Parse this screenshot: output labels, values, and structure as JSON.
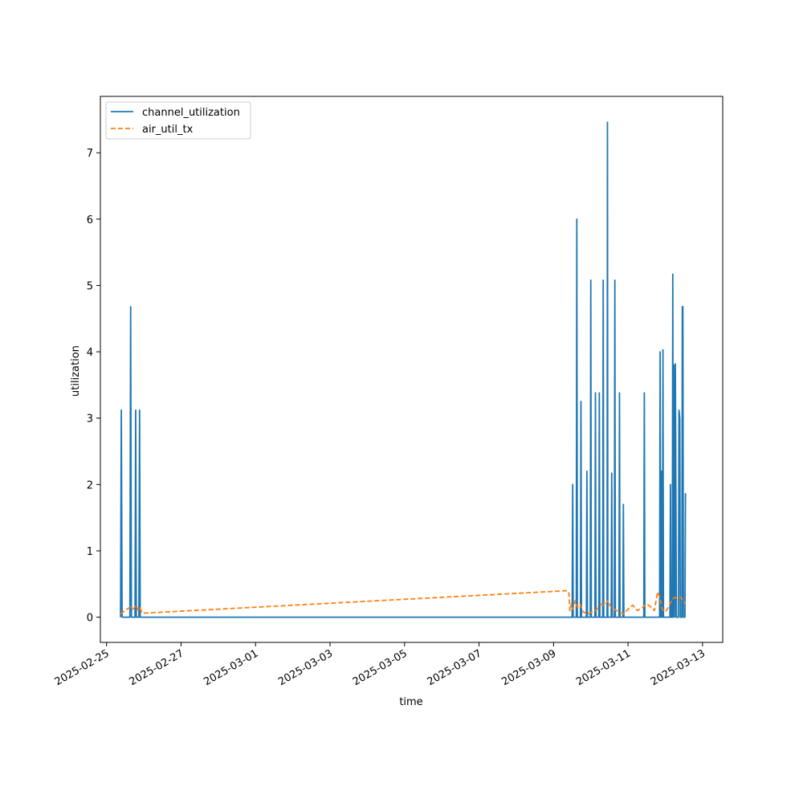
{
  "chart_data": {
    "type": "line",
    "xlabel": "time",
    "ylabel": "utilization",
    "x_axis": {
      "type": "date",
      "ticks": [
        "2025-02-25",
        "2025-02-27",
        "2025-03-01",
        "2025-03-03",
        "2025-03-05",
        "2025-03-07",
        "2025-03-09",
        "2025-03-11",
        "2025-03-13"
      ],
      "range": [
        "2025-02-24 20:00",
        "2025-03-13 13:00"
      ]
    },
    "y_axis": {
      "ticks": [
        "0",
        "1",
        "2",
        "3",
        "4",
        "5",
        "6",
        "7"
      ],
      "range": [
        -0.38,
        7.85
      ]
    },
    "legend": {
      "position": "top-left"
    },
    "grid": false,
    "series": [
      {
        "name": "channel_utilization",
        "color": "#1f77b4",
        "style": "solid",
        "points": [
          [
            "2025-02-25 09:00",
            0
          ],
          [
            "2025-02-25 09:30",
            3.12
          ],
          [
            "2025-02-25 10:00",
            0
          ],
          [
            "2025-02-25 15:00",
            0
          ],
          [
            "2025-02-25 15:30",
            4.68
          ],
          [
            "2025-02-25 16:00",
            0
          ],
          [
            "2025-02-25 18:20",
            0
          ],
          [
            "2025-02-25 18:45",
            3.12
          ],
          [
            "2025-02-25 19:10",
            0
          ],
          [
            "2025-02-25 20:50",
            0
          ],
          [
            "2025-02-25 21:15",
            3.12
          ],
          [
            "2025-02-25 21:40",
            0
          ],
          [
            "2025-03-09 10:00",
            0
          ],
          [
            "2025-03-09 12:00",
            0
          ],
          [
            "2025-03-09 12:20",
            2.0
          ],
          [
            "2025-03-09 12:40",
            0
          ],
          [
            "2025-03-09 14:40",
            0
          ],
          [
            "2025-03-09 15:00",
            6.0
          ],
          [
            "2025-03-09 15:20",
            0
          ],
          [
            "2025-03-09 17:20",
            0
          ],
          [
            "2025-03-09 17:40",
            3.25
          ],
          [
            "2025-03-09 18:00",
            0
          ],
          [
            "2025-03-09 21:10",
            0
          ],
          [
            "2025-03-09 21:30",
            2.2
          ],
          [
            "2025-03-09 21:50",
            0
          ],
          [
            "2025-03-09 23:40",
            0
          ],
          [
            "2025-03-10 00:00",
            5.08
          ],
          [
            "2025-03-10 00:20",
            0
          ],
          [
            "2025-03-10 02:40",
            0
          ],
          [
            "2025-03-10 03:00",
            3.38
          ],
          [
            "2025-03-10 03:20",
            0
          ],
          [
            "2025-03-10 05:10",
            0
          ],
          [
            "2025-03-10 05:30",
            3.38
          ],
          [
            "2025-03-10 05:50",
            0
          ],
          [
            "2025-03-10 07:40",
            0
          ],
          [
            "2025-03-10 08:00",
            5.08
          ],
          [
            "2025-03-10 08:20",
            0
          ],
          [
            "2025-03-10 10:30",
            0
          ],
          [
            "2025-03-10 10:45",
            7.46
          ],
          [
            "2025-03-10 11:00",
            0
          ],
          [
            "2025-03-10 13:10",
            0
          ],
          [
            "2025-03-10 13:30",
            2.17
          ],
          [
            "2025-03-10 13:50",
            0
          ],
          [
            "2025-03-10 15:10",
            0
          ],
          [
            "2025-03-10 15:30",
            5.08
          ],
          [
            "2025-03-10 15:50",
            0
          ],
          [
            "2025-03-10 18:10",
            0
          ],
          [
            "2025-03-10 18:30",
            3.38
          ],
          [
            "2025-03-10 18:50",
            0
          ],
          [
            "2025-03-10 20:40",
            0
          ],
          [
            "2025-03-10 21:00",
            1.7
          ],
          [
            "2025-03-10 21:20",
            0
          ],
          [
            "2025-03-11 10:10",
            0
          ],
          [
            "2025-03-11 10:30",
            3.38
          ],
          [
            "2025-03-11 10:50",
            0
          ],
          [
            "2025-03-11 20:20",
            0
          ],
          [
            "2025-03-11 20:40",
            4.0
          ],
          [
            "2025-03-11 21:00",
            0
          ],
          [
            "2025-03-11 21:10",
            0
          ],
          [
            "2025-03-11 21:30",
            2.2
          ],
          [
            "2025-03-11 21:50",
            0
          ],
          [
            "2025-03-11 22:10",
            0
          ],
          [
            "2025-03-11 22:30",
            4.03
          ],
          [
            "2025-03-11 22:50",
            0
          ],
          [
            "2025-03-12 03:00",
            0
          ],
          [
            "2025-03-12 03:20",
            2.0
          ],
          [
            "2025-03-12 03:40",
            0
          ],
          [
            "2025-03-12 04:30",
            0
          ],
          [
            "2025-03-12 04:50",
            5.17
          ],
          [
            "2025-03-12 05:10",
            0
          ],
          [
            "2025-03-12 05:30",
            3.8
          ],
          [
            "2025-03-12 06:10",
            0
          ],
          [
            "2025-03-12 06:30",
            3.82
          ],
          [
            "2025-03-12 07:10",
            0
          ],
          [
            "2025-03-12 08:30",
            0
          ],
          [
            "2025-03-12 08:50",
            3.12
          ],
          [
            "2025-03-12 09:20",
            3.0
          ],
          [
            "2025-03-12 09:40",
            0
          ],
          [
            "2025-03-12 10:40",
            0
          ],
          [
            "2025-03-12 11:00",
            4.68
          ],
          [
            "2025-03-12 11:20",
            4.68
          ],
          [
            "2025-03-12 11:40",
            0
          ],
          [
            "2025-03-12 12:40",
            0
          ],
          [
            "2025-03-12 13:00",
            1.87
          ]
        ]
      },
      {
        "name": "air_util_tx",
        "color": "#ff7f0e",
        "style": "dashed",
        "points": [
          [
            "2025-02-25 09:00",
            0.05
          ],
          [
            "2025-02-25 12:00",
            0.1
          ],
          [
            "2025-02-25 15:00",
            0.15
          ],
          [
            "2025-02-25 17:00",
            0.12
          ],
          [
            "2025-02-25 19:00",
            0.18
          ],
          [
            "2025-02-25 20:30",
            0.1
          ],
          [
            "2025-02-25 21:30",
            0.14
          ],
          [
            "2025-02-25 23:00",
            0.06
          ],
          [
            "2025-03-09 09:00",
            0.4
          ],
          [
            "2025-03-09 10:00",
            0.35
          ],
          [
            "2025-03-09 10:30",
            0.1
          ],
          [
            "2025-03-09 11:30",
            0.2
          ],
          [
            "2025-03-09 12:30",
            0.12
          ],
          [
            "2025-03-09 14:00",
            0.25
          ],
          [
            "2025-03-09 15:30",
            0.15
          ],
          [
            "2025-03-09 17:00",
            0.2
          ],
          [
            "2025-03-09 19:00",
            0.08
          ],
          [
            "2025-03-09 22:00",
            0.05
          ],
          [
            "2025-03-10 01:00",
            0.08
          ],
          [
            "2025-03-10 04:00",
            0.12
          ],
          [
            "2025-03-10 07:00",
            0.2
          ],
          [
            "2025-03-10 09:00",
            0.18
          ],
          [
            "2025-03-10 11:00",
            0.25
          ],
          [
            "2025-03-10 13:00",
            0.15
          ],
          [
            "2025-03-10 15:00",
            0.12
          ],
          [
            "2025-03-10 18:00",
            0.08
          ],
          [
            "2025-03-10 21:00",
            0.05
          ],
          [
            "2025-03-11 00:00",
            0.12
          ],
          [
            "2025-03-11 03:00",
            0.18
          ],
          [
            "2025-03-11 06:00",
            0.1
          ],
          [
            "2025-03-11 09:00",
            0.14
          ],
          [
            "2025-03-11 12:00",
            0.2
          ],
          [
            "2025-03-11 15:00",
            0.15
          ],
          [
            "2025-03-11 17:00",
            0.1
          ],
          [
            "2025-03-11 19:00",
            0.38
          ],
          [
            "2025-03-11 20:30",
            0.3
          ],
          [
            "2025-03-11 22:00",
            0.12
          ],
          [
            "2025-03-12 00:00",
            0.08
          ],
          [
            "2025-03-12 02:00",
            0.15
          ],
          [
            "2025-03-12 04:00",
            0.25
          ],
          [
            "2025-03-12 06:00",
            0.3
          ],
          [
            "2025-03-12 08:00",
            0.28
          ],
          [
            "2025-03-12 10:00",
            0.3
          ],
          [
            "2025-03-12 11:30",
            0.25
          ],
          [
            "2025-03-12 13:00",
            0.2
          ]
        ]
      }
    ]
  }
}
